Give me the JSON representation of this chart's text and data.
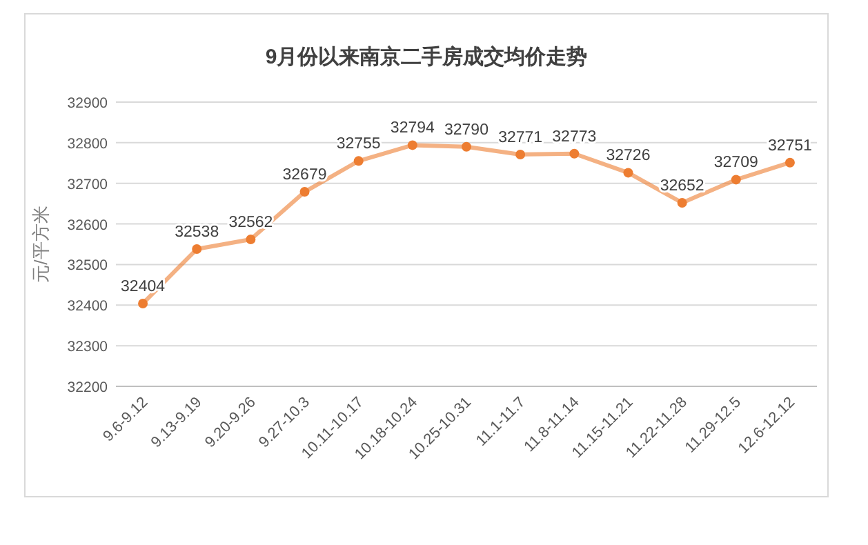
{
  "chart_data": {
    "type": "line",
    "title": "9月份以来南京二手房成交均价走势",
    "ylabel": "元/平方米",
    "categories": [
      "9.6-9.12",
      "9.13-9.19",
      "9.20-9.26",
      "9.27-10.3",
      "10.11-10.17",
      "10.18-10.24",
      "10.25-10.31",
      "11.1-11.7",
      "11.8-11.14",
      "11.15-11.21",
      "11.22-11.28",
      "11.29-12.5",
      "12.6-12.12"
    ],
    "values": [
      32404,
      32538,
      32562,
      32679,
      32755,
      32794,
      32790,
      32771,
      32773,
      32726,
      32652,
      32709,
      32751
    ],
    "color": "#ed7d31",
    "ylim": [
      32200,
      32900
    ],
    "yticks": [
      32200,
      32300,
      32400,
      32500,
      32600,
      32700,
      32800,
      32900
    ],
    "grid": "y",
    "data_labels": true,
    "marker": "circle"
  }
}
